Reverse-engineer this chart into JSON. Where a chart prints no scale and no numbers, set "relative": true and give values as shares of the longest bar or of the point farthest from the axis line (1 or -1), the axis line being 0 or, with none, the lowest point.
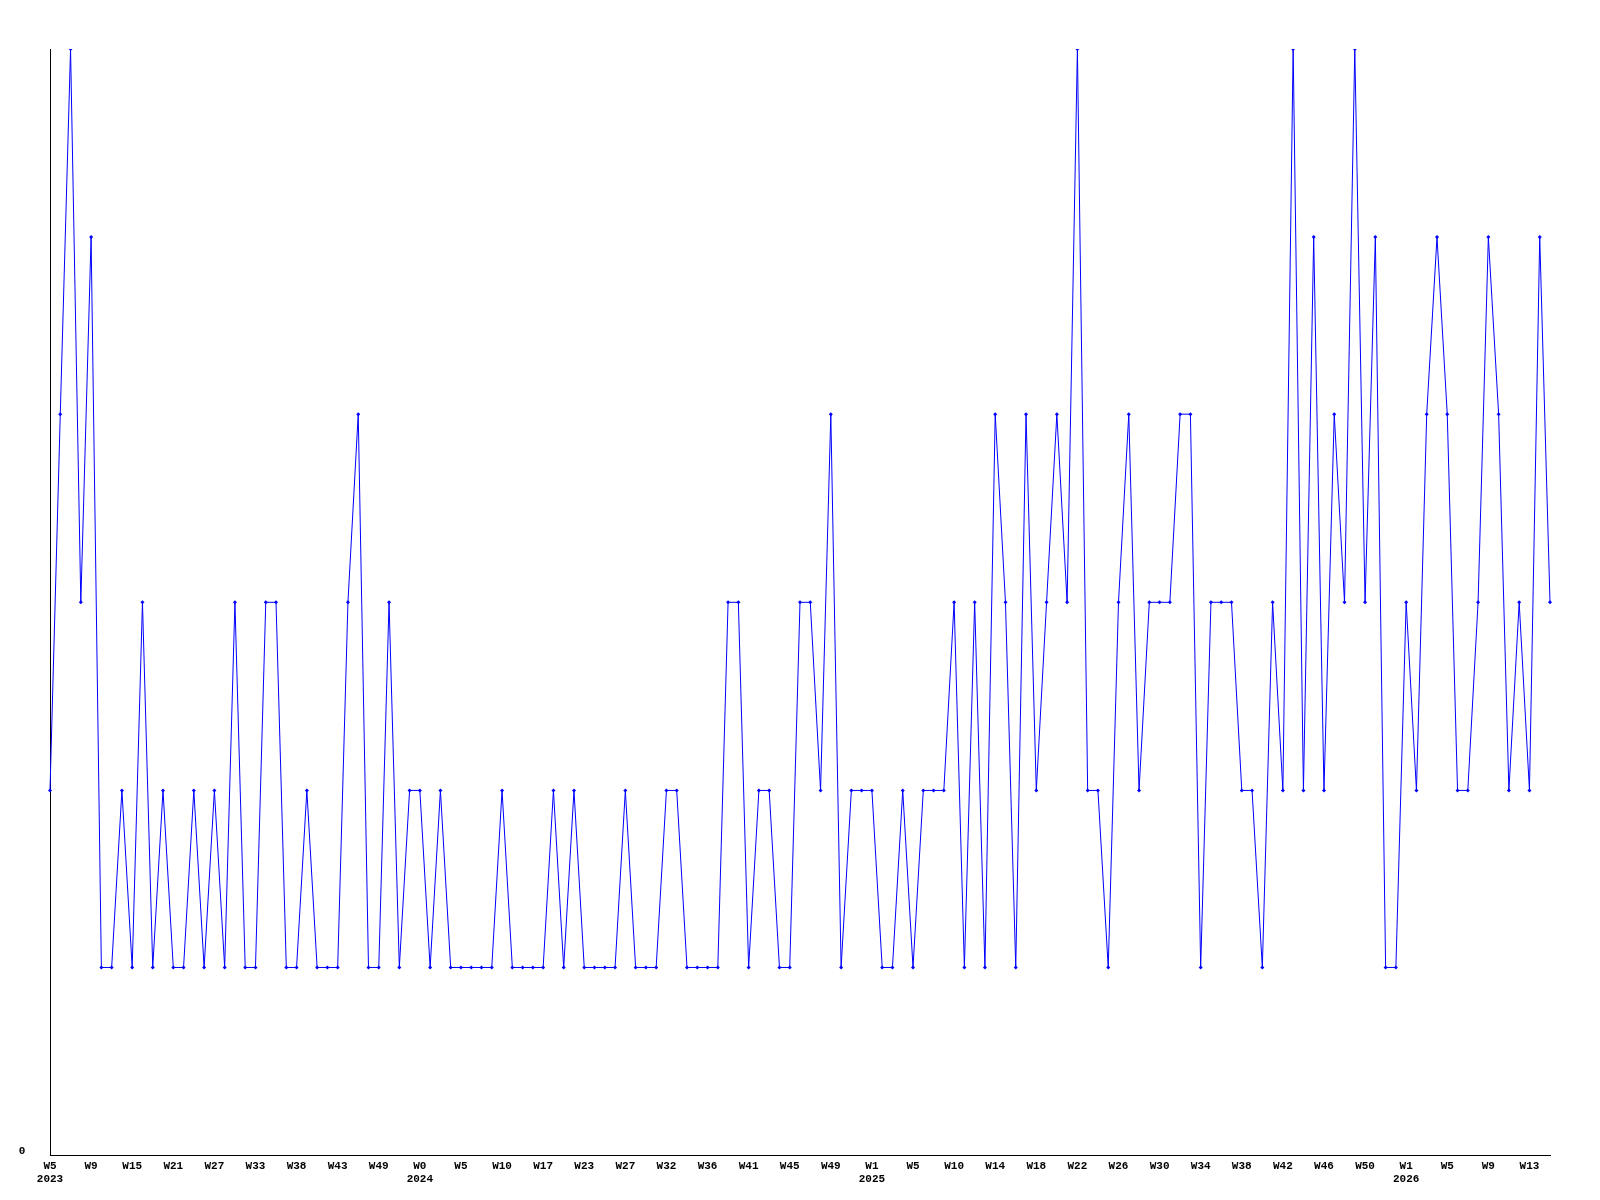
{
  "chart_data": {
    "type": "line",
    "relative": true,
    "grid": false,
    "legend": false,
    "marker": "diamond",
    "annotations": [
      "0"
    ],
    "categories": [
      "W5\n2023",
      null,
      null,
      null,
      "W9",
      null,
      null,
      null,
      "W15",
      null,
      null,
      null,
      "W21",
      null,
      null,
      null,
      "W27",
      null,
      null,
      null,
      "W33",
      null,
      null,
      null,
      "W38",
      null,
      null,
      null,
      "W43",
      null,
      null,
      null,
      "W49",
      null,
      null,
      null,
      "W0\n2024",
      null,
      null,
      null,
      "W5",
      null,
      null,
      null,
      "W10",
      null,
      null,
      null,
      "W17",
      null,
      null,
      null,
      "W23",
      null,
      null,
      null,
      "W27",
      null,
      null,
      null,
      "W32",
      null,
      null,
      null,
      "W36",
      null,
      null,
      null,
      "W41",
      null,
      null,
      null,
      "W45",
      null,
      null,
      null,
      "W49",
      null,
      null,
      null,
      "W1\n2025",
      null,
      null,
      null,
      "W5",
      null,
      null,
      null,
      "W10",
      null,
      null,
      null,
      "W14",
      null,
      null,
      null,
      "W18",
      null,
      null,
      null,
      "W22",
      null,
      null,
      null,
      "W26",
      null,
      null,
      null,
      "W30",
      null,
      null,
      null,
      "W34",
      null,
      null,
      null,
      "W38",
      null,
      null,
      null,
      "W42",
      null,
      null,
      null,
      "W46",
      null,
      null,
      null,
      "W50",
      null,
      null,
      null,
      "W1\n2026",
      null,
      null,
      null,
      "W5",
      null,
      null,
      null,
      "W9",
      null,
      null,
      null,
      "W13",
      null,
      null
    ],
    "series": [
      {
        "color": "#0000ff",
        "values": [
          0.33,
          0.67,
          1,
          0.5,
          0.83,
          0.17,
          0.17,
          0.33,
          0.17,
          0.5,
          0.17,
          0.33,
          0.17,
          0.17,
          0.33,
          0.17,
          0.33,
          0.17,
          0.5,
          0.17,
          0.17,
          0.5,
          0.5,
          0.17,
          0.17,
          0.33,
          0.17,
          0.17,
          0.17,
          0.5,
          0.67,
          0.17,
          0.17,
          0.5,
          0.17,
          0.33,
          0.33,
          0.17,
          0.33,
          0.17,
          0.17,
          0.17,
          0.17,
          0.17,
          0.33,
          0.17,
          0.17,
          0.17,
          0.17,
          0.33,
          0.17,
          0.33,
          0.17,
          0.17,
          0.17,
          0.17,
          0.33,
          0.17,
          0.17,
          0.17,
          0.33,
          0.33,
          0.17,
          0.17,
          0.17,
          0.17,
          0.5,
          0.5,
          0.17,
          0.33,
          0.33,
          0.17,
          0.17,
          0.5,
          0.5,
          0.33,
          0.67,
          0.17,
          0.33,
          0.33,
          0.33,
          0.17,
          0.17,
          0.33,
          0.17,
          0.33,
          0.33,
          0.33,
          0.5,
          0.17,
          0.5,
          0.17,
          0.67,
          0.5,
          0.17,
          0.67,
          0.33,
          0.5,
          0.67,
          0.5,
          1,
          0.33,
          0.33,
          0.17,
          0.5,
          0.67,
          0.33,
          0.5,
          0.5,
          0.5,
          0.67,
          0.67,
          0.17,
          0.5,
          0.5,
          0.5,
          0.33,
          0.33,
          0.17,
          0.5,
          0.33,
          1,
          0.33,
          0.83,
          0.33,
          0.67,
          0.5,
          1,
          0.5,
          0.83,
          0.17,
          0.17,
          0.5,
          0.33,
          0.67,
          0.83,
          0.67,
          0.33,
          0.33,
          0.5,
          0.83,
          0.67,
          0.33,
          0.5,
          0.33,
          0.83,
          0.5
        ]
      }
    ]
  }
}
